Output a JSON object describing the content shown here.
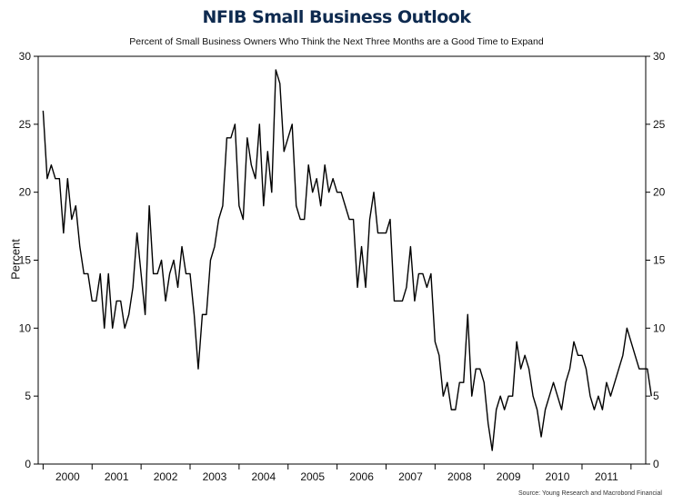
{
  "chart_data": {
    "type": "line",
    "title": "NFIB Small Business Outlook",
    "subtitle": "Percent of Small Business Owners Who Think the Next Three Months are a Good Time to Expand",
    "ylabel": "Percent",
    "xlabel": "",
    "source": "Source: Young Research and Macrobond Financial",
    "ylim": [
      0,
      30
    ],
    "yticks": [
      0,
      5,
      10,
      15,
      20,
      25,
      30
    ],
    "xlim": [
      1999.9,
      2012.3
    ],
    "year_labels": [
      "2000",
      "2001",
      "2002",
      "2003",
      "2004",
      "2005",
      "2006",
      "2007",
      "2008",
      "2009",
      "2010",
      "2011"
    ],
    "line_color": "#000000",
    "series": [
      {
        "name": "Good time to expand",
        "start": 2000.0,
        "step": 0.0833333,
        "values": [
          26,
          21,
          22,
          21,
          21,
          17,
          21,
          18,
          19,
          16,
          14,
          14,
          12,
          12,
          14,
          10,
          14,
          10,
          12,
          12,
          10,
          11,
          13,
          17,
          14,
          11,
          19,
          14,
          14,
          15,
          12,
          14,
          15,
          13,
          16,
          14,
          14,
          11,
          7,
          11,
          11,
          15,
          16,
          18,
          19,
          24,
          24,
          25,
          19,
          18,
          24,
          22,
          21,
          25,
          19,
          23,
          20,
          29,
          28,
          23,
          24,
          25,
          19,
          18,
          18,
          22,
          20,
          21,
          19,
          22,
          20,
          21,
          20,
          20,
          19,
          18,
          18,
          13,
          16,
          13,
          18,
          20,
          17,
          17,
          17,
          18,
          12,
          12,
          12,
          13,
          16,
          12,
          14,
          14,
          13,
          14,
          9,
          8,
          5,
          6,
          4,
          4,
          6,
          6,
          11,
          5,
          7,
          7,
          6,
          3,
          1,
          4,
          5,
          4,
          5,
          5,
          9,
          7,
          8,
          7,
          5,
          4,
          2,
          4,
          5,
          6,
          5,
          4,
          6,
          7,
          9,
          8,
          8,
          7,
          5,
          4,
          5,
          4,
          6,
          5,
          6,
          7,
          8,
          10,
          9,
          8,
          7,
          7,
          7,
          5
        ]
      }
    ]
  }
}
